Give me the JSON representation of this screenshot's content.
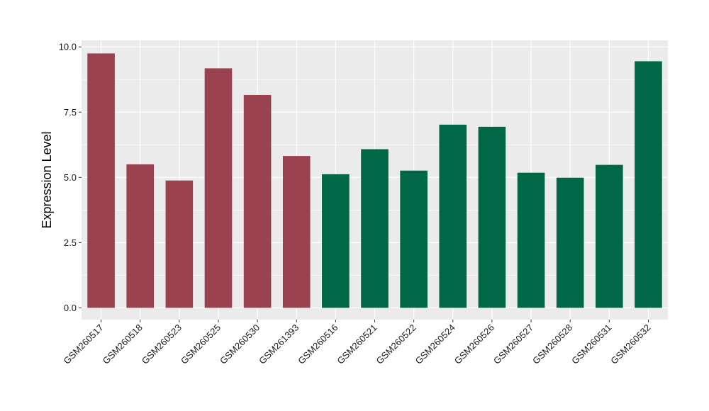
{
  "chart_data": {
    "type": "bar",
    "title": "",
    "xlabel": "",
    "ylabel": "Expression Level",
    "ylim": [
      -0.45,
      10.25
    ],
    "yticks": [
      0.0,
      2.5,
      5.0,
      7.5,
      10.0
    ],
    "ytick_labels": [
      "0.0",
      "2.5",
      "5.0",
      "7.5",
      "10.0"
    ],
    "grid": true,
    "legend": "none",
    "categories": [
      "GSM260517",
      "GSM260518",
      "GSM260523",
      "GSM260525",
      "GSM260530",
      "GSM261393",
      "GSM260516",
      "GSM260521",
      "GSM260522",
      "GSM260524",
      "GSM260526",
      "GSM260527",
      "GSM260528",
      "GSM260531",
      "GSM260532"
    ],
    "values": [
      9.75,
      5.5,
      4.88,
      9.18,
      8.16,
      5.82,
      5.12,
      6.08,
      5.26,
      7.02,
      6.94,
      5.18,
      4.99,
      5.48,
      9.45
    ],
    "bar_colors": [
      "#9b4250",
      "#9b4250",
      "#9b4250",
      "#9b4250",
      "#9b4250",
      "#9b4250",
      "#006846",
      "#006846",
      "#006846",
      "#006846",
      "#006846",
      "#006846",
      "#006846",
      "#006846",
      "#006846"
    ],
    "panel_color": "#ebebeb",
    "grid_color": "#ffffff"
  }
}
